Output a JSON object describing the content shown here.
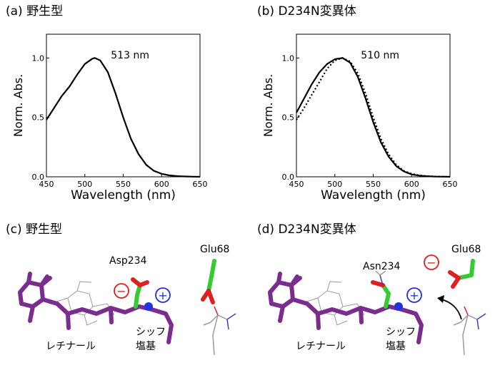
{
  "panels": {
    "a": {
      "label": "(a) 野生型"
    },
    "b": {
      "label": "(b) D234N変異体"
    },
    "c": {
      "label": "(c) 野生型"
    },
    "d": {
      "label": "(d) D234N変異体"
    }
  },
  "chart_data": [
    {
      "type": "line",
      "panel": "a",
      "ylabel": "Norm. Abs.",
      "xlabel": "Wavelength (nm)",
      "annotation": "513 nm",
      "xlim": [
        450,
        650
      ],
      "ylim": [
        0,
        1.2
      ],
      "xticks": [
        450,
        500,
        550,
        600,
        650
      ],
      "yticks": [
        0.0,
        0.5,
        1.0
      ],
      "ytick_labels": [
        "0.0",
        "0.5",
        "1.0"
      ],
      "series": [
        {
          "style": "solid",
          "x": [
            450,
            460,
            470,
            480,
            490,
            500,
            510,
            513,
            520,
            530,
            540,
            550,
            560,
            570,
            580,
            590,
            600,
            610,
            620,
            630,
            640,
            650
          ],
          "y": [
            0.48,
            0.58,
            0.68,
            0.76,
            0.86,
            0.95,
            0.995,
            1.0,
            0.98,
            0.88,
            0.7,
            0.5,
            0.32,
            0.19,
            0.1,
            0.05,
            0.025,
            0.012,
            0.006,
            0.003,
            0.001,
            0.0
          ]
        }
      ]
    },
    {
      "type": "line",
      "panel": "b",
      "ylabel": "Norm. Abs.",
      "xlabel": "Wavelength (nm)",
      "annotation": "510 nm",
      "xlim": [
        450,
        650
      ],
      "ylim": [
        0,
        1.2
      ],
      "xticks": [
        450,
        500,
        550,
        600,
        650
      ],
      "yticks": [
        0.0,
        0.5,
        1.0
      ],
      "ytick_labels": [
        "0.0",
        "0.5",
        "1.0"
      ],
      "series": [
        {
          "style": "solid",
          "x": [
            450,
            460,
            470,
            480,
            490,
            500,
            510,
            520,
            530,
            540,
            550,
            560,
            570,
            580,
            590,
            600,
            610,
            620,
            630,
            640,
            650
          ],
          "y": [
            0.54,
            0.66,
            0.78,
            0.88,
            0.95,
            0.99,
            1.0,
            0.96,
            0.84,
            0.66,
            0.46,
            0.29,
            0.17,
            0.09,
            0.045,
            0.02,
            0.01,
            0.005,
            0.002,
            0.001,
            0.0
          ]
        },
        {
          "style": "dotted",
          "x": [
            450,
            460,
            470,
            480,
            490,
            500,
            510,
            520,
            530,
            540,
            550,
            560,
            570,
            580,
            590,
            600,
            610,
            620,
            630,
            640,
            650
          ],
          "y": [
            0.48,
            0.58,
            0.69,
            0.8,
            0.91,
            0.98,
            1.0,
            0.97,
            0.87,
            0.7,
            0.5,
            0.32,
            0.19,
            0.1,
            0.05,
            0.025,
            0.012,
            0.006,
            0.003,
            0.001,
            0.0
          ]
        }
      ]
    }
  ],
  "structure_c": {
    "residue_top": "Asp234",
    "residue_right": "Glu68",
    "retinal_label": "レチナール",
    "schiff_label_1": "シッフ",
    "schiff_label_2": "塩基",
    "minus_sign": "−",
    "plus_sign": "+"
  },
  "structure_d": {
    "residue_top": "Asn234",
    "residue_right": "Glu68",
    "retinal_label": "レチナール",
    "schiff_label_1": "シッフ",
    "schiff_label_2": "塩基",
    "minus_sign": "−",
    "plus_sign": "+"
  },
  "colors": {
    "retinal": "#7b2d8e",
    "residue": "#33cc33",
    "oxygen": "#e02020",
    "nitrogen_ball": "#2233dd",
    "minus": "#e02020",
    "plus": "#2233dd"
  }
}
